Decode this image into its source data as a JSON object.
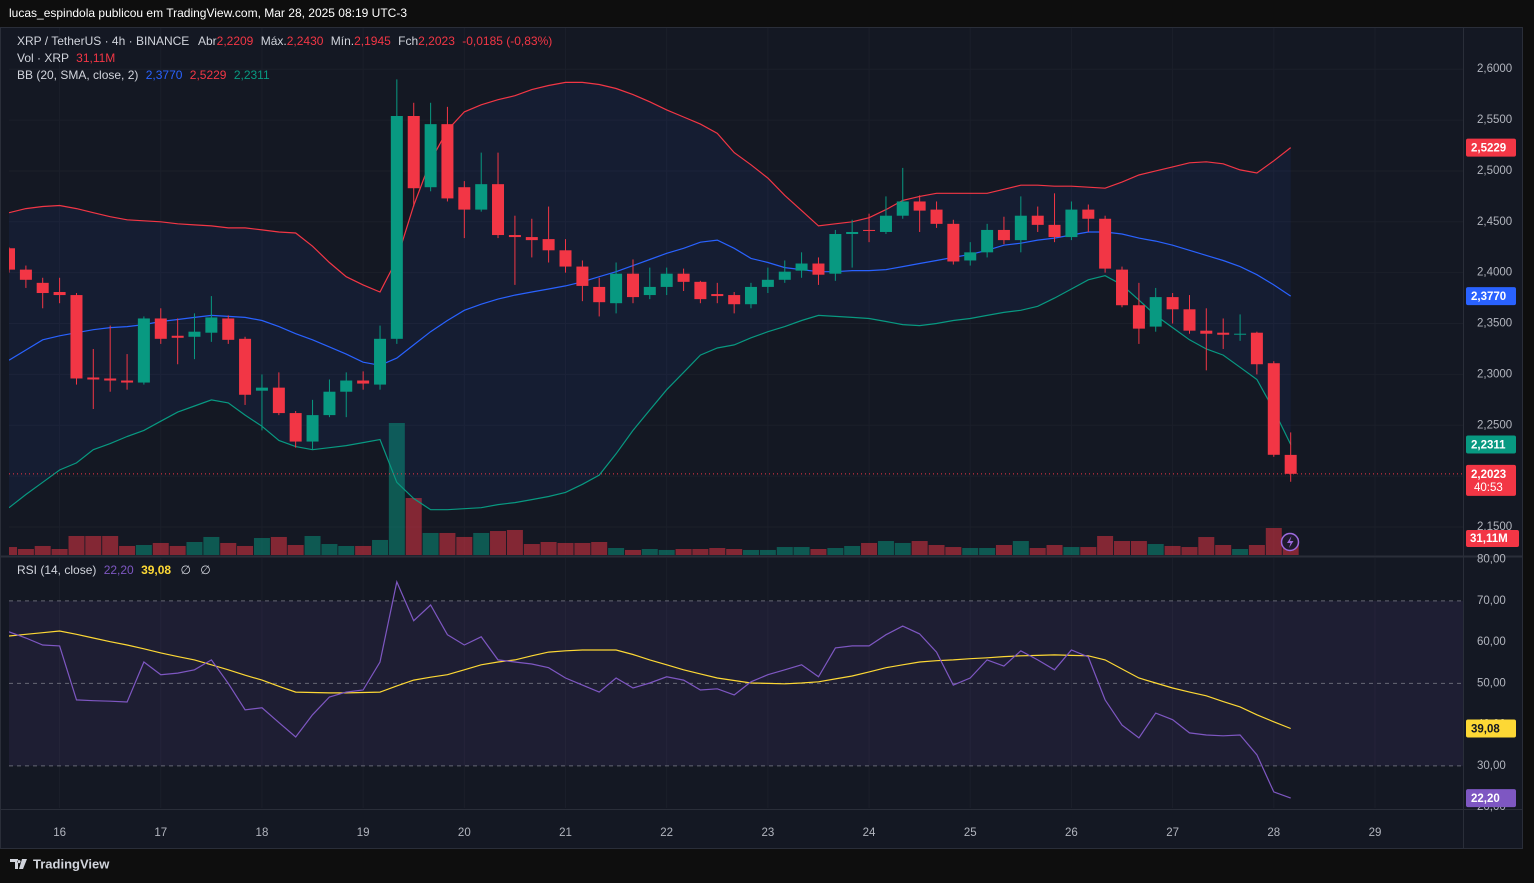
{
  "header": {
    "text": "lucas_espindola publicou em TradingView.com, Mar 28, 2025 08:19 UTC-3"
  },
  "footer": {
    "brand": "TradingView"
  },
  "chart_data": [
    {
      "type": "candlestick",
      "symbol": "XRP / TetherUS · 4h · BINANCE",
      "ohlc_names": [
        "Abr",
        "Máx.",
        "Mín.",
        "Fch"
      ],
      "ohlc_labels": [
        "2,2209",
        "2,2430",
        "2,1945",
        "2,2023"
      ],
      "change_label": "-0,0185 (-0,83%)",
      "volume_title": "Vol · XRP",
      "volume_label": "31,11M",
      "bb_title": "BB (20, SMA, close, 2)",
      "close_label": "2,2023",
      "countdown": "40:53",
      "up_color": "#089981",
      "down_color": "#f23645",
      "xlim": [
        15.5,
        29.87
      ],
      "ylim": [
        2.1225,
        2.6405
      ],
      "yticks": [
        {
          "value": 2.15,
          "label": "2,1500"
        },
        {
          "value": 2.2,
          "label": "2,2000"
        },
        {
          "value": 2.25,
          "label": "2,2500"
        },
        {
          "value": 2.3,
          "label": "2,3000"
        },
        {
          "value": 2.35,
          "label": "2,3500"
        },
        {
          "value": 2.4,
          "label": "2,4000"
        },
        {
          "value": 2.45,
          "label": "2,4500"
        },
        {
          "value": 2.5,
          "label": "2,5000"
        },
        {
          "value": 2.55,
          "label": "2,5500"
        },
        {
          "value": 2.6,
          "label": "2,6000"
        }
      ],
      "grid": true,
      "x": [
        15.5,
        15.667,
        15.833,
        16,
        16.167,
        16.333,
        16.5,
        16.667,
        16.833,
        17,
        17.167,
        17.333,
        17.5,
        17.667,
        17.833,
        18,
        18.167,
        18.333,
        18.5,
        18.667,
        18.833,
        19,
        19.167,
        19.333,
        19.5,
        19.667,
        19.833,
        20,
        20.167,
        20.333,
        20.5,
        20.667,
        20.833,
        21,
        21.167,
        21.333,
        21.5,
        21.667,
        21.833,
        22,
        22.167,
        22.333,
        22.5,
        22.667,
        22.833,
        23,
        23.167,
        23.333,
        23.5,
        23.667,
        23.833,
        24,
        24.167,
        24.333,
        24.5,
        24.667,
        24.833,
        25,
        25.167,
        25.333,
        25.5,
        25.667,
        25.833,
        26,
        26.167,
        26.333,
        26.5,
        26.667,
        26.833,
        27,
        27.167,
        27.333,
        27.5,
        27.667,
        27.833,
        28,
        28.167
      ],
      "open": [
        2.424,
        2.403,
        2.39,
        2.381,
        2.378,
        2.297,
        2.296,
        2.294,
        2.292,
        2.355,
        2.338,
        2.337,
        2.341,
        2.355,
        2.335,
        2.284,
        2.287,
        2.262,
        2.234,
        2.26,
        2.283,
        2.294,
        2.29,
        2.335,
        2.554,
        2.484,
        2.546,
        2.484,
        2.462,
        2.487,
        2.437,
        2.435,
        2.433,
        2.422,
        2.406,
        2.386,
        2.37,
        2.399,
        2.378,
        2.386,
        2.399,
        2.391,
        2.379,
        2.378,
        2.369,
        2.386,
        2.393,
        2.402,
        2.409,
        2.399,
        2.438,
        2.442,
        2.44,
        2.456,
        2.47,
        2.462,
        2.448,
        2.412,
        2.42,
        2.442,
        2.432,
        2.456,
        2.447,
        2.435,
        2.462,
        2.453,
        2.403,
        2.368,
        2.347,
        2.376,
        2.364,
        2.343,
        2.341,
        2.339,
        2.341,
        2.311,
        2.2209
      ],
      "high": [
        2.425,
        2.407,
        2.395,
        2.395,
        2.38,
        2.325,
        2.348,
        2.32,
        2.357,
        2.365,
        2.355,
        2.36,
        2.377,
        2.358,
        2.337,
        2.3,
        2.302,
        2.264,
        2.275,
        2.295,
        2.302,
        2.303,
        2.348,
        2.59,
        2.567,
        2.567,
        2.563,
        2.49,
        2.518,
        2.518,
        2.456,
        2.453,
        2.465,
        2.433,
        2.412,
        2.395,
        2.41,
        2.413,
        2.405,
        2.405,
        2.404,
        2.392,
        2.39,
        2.381,
        2.39,
        2.405,
        2.412,
        2.42,
        2.415,
        2.442,
        2.452,
        2.458,
        2.475,
        2.503,
        2.476,
        2.47,
        2.452,
        2.43,
        2.448,
        2.455,
        2.475,
        2.465,
        2.478,
        2.47,
        2.467,
        2.456,
        2.406,
        2.39,
        2.385,
        2.38,
        2.378,
        2.365,
        2.355,
        2.359,
        2.342,
        2.313,
        2.243
      ],
      "low": [
        2.4,
        2.385,
        2.365,
        2.37,
        2.29,
        2.266,
        2.283,
        2.285,
        2.29,
        2.33,
        2.31,
        2.315,
        2.332,
        2.33,
        2.27,
        2.245,
        2.26,
        2.228,
        2.226,
        2.258,
        2.258,
        2.285,
        2.285,
        2.33,
        2.465,
        2.48,
        2.47,
        2.434,
        2.46,
        2.434,
        2.388,
        2.415,
        2.41,
        2.4,
        2.372,
        2.357,
        2.36,
        2.37,
        2.374,
        2.378,
        2.382,
        2.37,
        2.37,
        2.36,
        2.365,
        2.38,
        2.39,
        2.395,
        2.388,
        2.392,
        2.405,
        2.43,
        2.438,
        2.453,
        2.44,
        2.444,
        2.408,
        2.407,
        2.415,
        2.428,
        2.42,
        2.44,
        2.43,
        2.432,
        2.44,
        2.4,
        2.366,
        2.33,
        2.342,
        2.35,
        2.34,
        2.304,
        2.325,
        2.333,
        2.3,
        2.219,
        2.1945
      ],
      "close": [
        2.403,
        2.393,
        2.38,
        2.378,
        2.296,
        2.295,
        2.294,
        2.292,
        2.355,
        2.335,
        2.336,
        2.342,
        2.356,
        2.334,
        2.28,
        2.287,
        2.262,
        2.234,
        2.26,
        2.283,
        2.294,
        2.291,
        2.335,
        2.554,
        2.483,
        2.546,
        2.473,
        2.462,
        2.487,
        2.437,
        2.435,
        2.432,
        2.422,
        2.406,
        2.387,
        2.371,
        2.399,
        2.376,
        2.386,
        2.399,
        2.391,
        2.374,
        2.377,
        2.369,
        2.386,
        2.393,
        2.401,
        2.409,
        2.398,
        2.438,
        2.44,
        2.441,
        2.456,
        2.47,
        2.461,
        2.448,
        2.411,
        2.42,
        2.442,
        2.432,
        2.456,
        2.447,
        2.435,
        2.462,
        2.453,
        2.404,
        2.368,
        2.345,
        2.376,
        2.364,
        2.343,
        2.34,
        2.339,
        2.34,
        2.31,
        2.221,
        2.2023
      ],
      "volume": [
        14.6,
        11,
        16.5,
        11,
        34.8,
        34.8,
        34.8,
        16.5,
        18.3,
        22,
        16.5,
        23.8,
        33,
        22,
        16.5,
        31.1,
        33,
        18.3,
        34.8,
        20.1,
        16.5,
        16.5,
        27.5,
        241.6,
        104.3,
        40.3,
        40.3,
        33,
        40.3,
        43.9,
        45.8,
        20.1,
        23.8,
        22,
        22,
        23.8,
        12.8,
        9.2,
        11,
        9.2,
        11,
        11,
        12.8,
        11,
        9.2,
        9.2,
        14.6,
        14.6,
        11,
        12.8,
        16.5,
        22,
        25.6,
        22,
        25.6,
        18.3,
        14.6,
        12.8,
        12.8,
        18.3,
        25.6,
        12.8,
        18.3,
        14.6,
        14.6,
        34.8,
        25.6,
        25.6,
        20.1,
        16.5,
        14.6,
        32.9,
        18.3,
        11,
        18.3,
        49.4,
        31.11
      ],
      "bb": [
        {
          "color": "#2962ff",
          "last_label": "2,3770",
          "values": [
            2.314,
            2.324,
            2.334,
            2.338,
            2.341,
            2.344,
            2.346,
            2.347,
            2.349,
            2.352,
            2.354,
            2.356,
            2.358,
            2.357,
            2.356,
            2.353,
            2.347,
            2.34,
            2.334,
            2.327,
            2.32,
            2.312,
            2.309,
            2.316,
            2.329,
            2.342,
            2.353,
            2.363,
            2.369,
            2.374,
            2.378,
            2.381,
            2.384,
            2.387,
            2.391,
            2.396,
            2.401,
            2.407,
            2.413,
            2.419,
            2.424,
            2.43,
            2.432,
            2.424,
            2.414,
            2.41,
            2.405,
            2.403,
            2.401,
            2.401,
            2.402,
            2.402,
            2.403,
            2.406,
            2.409,
            2.412,
            2.415,
            2.418,
            2.422,
            2.427,
            2.429,
            2.432,
            2.434,
            2.437,
            2.44,
            2.44,
            2.438,
            2.434,
            2.431,
            2.427,
            2.422,
            2.417,
            2.412,
            2.406,
            2.398,
            2.388,
            2.377
          ]
        },
        {
          "color": "#f23645",
          "last_label": "2,5229",
          "values": [
            2.459,
            2.463,
            2.465,
            2.466,
            2.463,
            2.459,
            2.455,
            2.452,
            2.451,
            2.45,
            2.448,
            2.447,
            2.446,
            2.444,
            2.444,
            2.442,
            2.44,
            2.439,
            2.426,
            2.41,
            2.396,
            2.388,
            2.381,
            2.413,
            2.466,
            2.51,
            2.54,
            2.558,
            2.565,
            2.57,
            2.574,
            2.58,
            2.584,
            2.587,
            2.587,
            2.585,
            2.581,
            2.575,
            2.568,
            2.56,
            2.553,
            2.546,
            2.537,
            2.518,
            2.506,
            2.493,
            2.476,
            2.461,
            2.446,
            2.448,
            2.45,
            2.454,
            2.462,
            2.471,
            2.475,
            2.478,
            2.478,
            2.478,
            2.478,
            2.482,
            2.486,
            2.486,
            2.485,
            2.485,
            2.484,
            2.483,
            2.489,
            2.496,
            2.5,
            2.504,
            2.508,
            2.509,
            2.507,
            2.501,
            2.498,
            2.51,
            2.5229
          ]
        },
        {
          "color": "#089981",
          "last_label": "2,2311",
          "values": [
            2.169,
            2.182,
            2.194,
            2.206,
            2.213,
            2.226,
            2.232,
            2.239,
            2.245,
            2.254,
            2.263,
            2.269,
            2.275,
            2.272,
            2.26,
            2.249,
            2.235,
            2.229,
            2.226,
            2.228,
            2.23,
            2.233,
            2.236,
            2.194,
            2.178,
            2.167,
            2.167,
            2.168,
            2.169,
            2.172,
            2.174,
            2.177,
            2.18,
            2.184,
            2.192,
            2.201,
            2.222,
            2.245,
            2.265,
            2.285,
            2.302,
            2.319,
            2.326,
            2.329,
            2.336,
            2.342,
            2.347,
            2.353,
            2.358,
            2.357,
            2.356,
            2.355,
            2.352,
            2.349,
            2.348,
            2.35,
            2.353,
            2.355,
            2.358,
            2.361,
            2.363,
            2.367,
            2.375,
            2.384,
            2.393,
            2.397,
            2.388,
            2.373,
            2.358,
            2.346,
            2.334,
            2.325,
            2.319,
            2.307,
            2.295,
            2.265,
            2.2311
          ]
        }
      ]
    },
    {
      "type": "line",
      "title": "RSI (14, close)",
      "extra_labels": [
        "∅",
        "∅"
      ],
      "xlim": [
        15.5,
        29.87
      ],
      "xticks": [
        16,
        17,
        18,
        19,
        20,
        21,
        22,
        23,
        24,
        25,
        26,
        27,
        28,
        29
      ],
      "ylim": [
        19.8,
        80.4
      ],
      "yticks": [
        {
          "value": 20,
          "label": "20,00"
        },
        {
          "value": 30,
          "label": "30,00"
        },
        {
          "value": 40,
          "label": "40,00"
        },
        {
          "value": 50,
          "label": "50,00"
        },
        {
          "value": 60,
          "label": "60,00"
        },
        {
          "value": 70,
          "label": "70,00"
        },
        {
          "value": 80,
          "label": "80,00"
        }
      ],
      "band": [
        30,
        70
      ],
      "midline": 50,
      "x": [
        15.5,
        15.667,
        15.833,
        16,
        16.167,
        16.333,
        16.5,
        16.667,
        16.833,
        17,
        17.167,
        17.333,
        17.5,
        17.667,
        17.833,
        18,
        18.167,
        18.333,
        18.5,
        18.667,
        18.833,
        19,
        19.167,
        19.333,
        19.5,
        19.667,
        19.833,
        20,
        20.167,
        20.333,
        20.5,
        20.667,
        20.833,
        21,
        21.167,
        21.333,
        21.5,
        21.667,
        21.833,
        22,
        22.167,
        22.333,
        22.5,
        22.667,
        22.833,
        23,
        23.167,
        23.333,
        23.5,
        23.667,
        23.833,
        24,
        24.167,
        24.333,
        24.5,
        24.667,
        24.833,
        25,
        25.167,
        25.333,
        25.5,
        25.667,
        25.833,
        26,
        26.167,
        26.333,
        26.5,
        26.667,
        26.833,
        27,
        27.167,
        27.333,
        27.5,
        27.667,
        27.833,
        28,
        28.167
      ],
      "series": [
        {
          "color": "#7e57c2",
          "last_label": "22,20",
          "values": [
            62.5,
            61,
            59.3,
            59.1,
            46,
            45.8,
            45.7,
            45.5,
            55.2,
            52.1,
            52.5,
            53.3,
            55.7,
            50,
            43.6,
            44.1,
            40.5,
            37,
            42.4,
            46.7,
            47.9,
            48.4,
            55.2,
            74.6,
            65.2,
            69,
            61.8,
            59.3,
            61.3,
            55.7,
            55.2,
            54.7,
            53.8,
            51.3,
            49.6,
            47.9,
            51.3,
            48.9,
            50.1,
            51.6,
            50.8,
            48.4,
            48.7,
            47.2,
            50.4,
            52.1,
            53.3,
            54.5,
            51.6,
            58.6,
            59.1,
            59.1,
            61.8,
            63.9,
            62,
            57.6,
            49.6,
            51.3,
            55.7,
            54.2,
            57.9,
            55.7,
            53.3,
            58.1,
            56.4,
            46,
            39.9,
            36.8,
            42.8,
            41.2,
            38,
            37.5,
            37.3,
            37.5,
            32.7,
            23.7,
            22.2
          ]
        },
        {
          "color": "#fdd835",
          "last_label": "39,08",
          "values": [
            61.5,
            61.9,
            62.3,
            62.7,
            61.9,
            61,
            60.1,
            59.3,
            58.4,
            57.4,
            56.5,
            55.7,
            54.5,
            53.3,
            52,
            50.8,
            49.3,
            47.9,
            47.8,
            47.7,
            47.7,
            47.8,
            47.9,
            49.4,
            50.8,
            51.5,
            52.1,
            53.3,
            54.5,
            55.2,
            55.7,
            56.7,
            57.6,
            57.9,
            58.1,
            58.1,
            58.1,
            57,
            55.7,
            54.5,
            53.3,
            52.3,
            51.3,
            50.7,
            50.1,
            50,
            49.9,
            50.1,
            50.4,
            51.1,
            51.8,
            52.8,
            53.8,
            54.5,
            55.2,
            55.5,
            55.7,
            56,
            56.2,
            56.5,
            56.7,
            56.8,
            56.9,
            56.8,
            56.7,
            55.7,
            53.5,
            51.3,
            50.1,
            48.9,
            47.9,
            47,
            45.6,
            44.3,
            42.4,
            40.7,
            39.08
          ]
        }
      ]
    }
  ]
}
